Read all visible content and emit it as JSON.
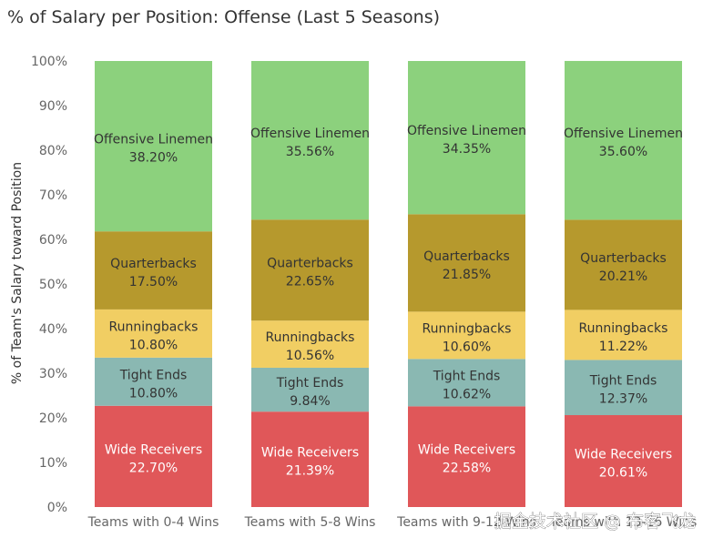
{
  "chart_data": {
    "type": "bar",
    "stacked": true,
    "title": "% of Salary per Position:  Offense (Last 5 Seasons)",
    "ylabel": "% of Team's Salary toward Position",
    "xlabel": "",
    "ylim": [
      0,
      100
    ],
    "yticks": [
      "0%",
      "10%",
      "20%",
      "30%",
      "40%",
      "50%",
      "60%",
      "70%",
      "80%",
      "90%",
      "100%"
    ],
    "categories": [
      "Teams with 0-4 Wins",
      "Teams with 5-8 Wins",
      "Teams with 9-12 Wins",
      "Teams with 13-16 Wins"
    ],
    "series": [
      {
        "name": "Wide Receivers",
        "color": "#e05759",
        "values": [
          22.7,
          21.39,
          22.58,
          20.61
        ],
        "labels": [
          "22.70%",
          "21.39%",
          "22.58%",
          "20.61%"
        ]
      },
      {
        "name": "Tight Ends",
        "color": "#8ab8b2",
        "values": [
          10.8,
          9.84,
          10.62,
          12.37
        ],
        "labels": [
          "10.80%",
          "9.84%",
          "10.62%",
          "12.37%"
        ]
      },
      {
        "name": "Runningbacks",
        "color": "#f1ce63",
        "values": [
          10.8,
          10.56,
          10.6,
          11.22
        ],
        "labels": [
          "10.80%",
          "10.56%",
          "10.60%",
          "11.22%"
        ]
      },
      {
        "name": "Quarterbacks",
        "color": "#b6992d",
        "values": [
          17.5,
          22.65,
          21.85,
          20.21
        ],
        "labels": [
          "17.50%",
          "22.65%",
          "21.85%",
          "20.21%"
        ]
      },
      {
        "name": "Offensive Linemen",
        "color": "#8cd17d",
        "values": [
          38.2,
          35.56,
          34.35,
          35.6
        ],
        "labels": [
          "38.20%",
          "35.56%",
          "34.35%",
          "35.60%"
        ]
      }
    ],
    "grid": false,
    "legend": "none"
  },
  "watermark": "掘金技术社区 @ 布客飞龙"
}
